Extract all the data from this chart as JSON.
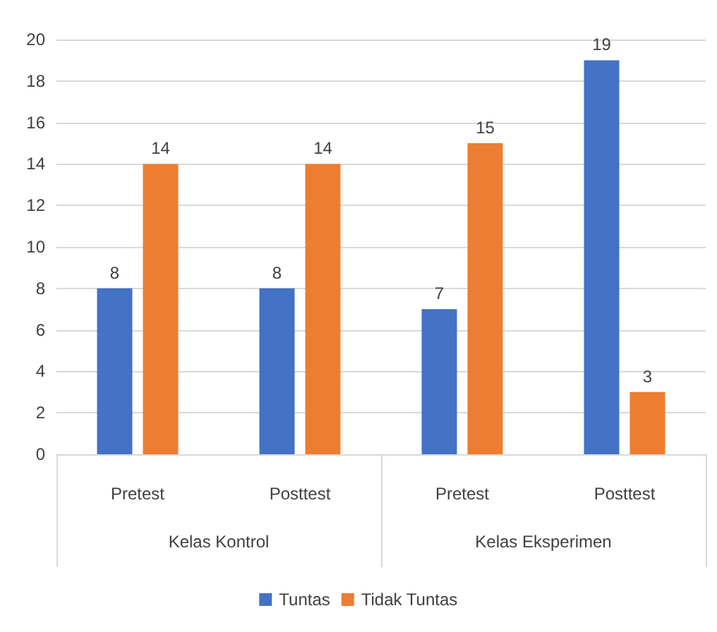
{
  "chart_data": {
    "type": "bar",
    "categories": [
      "Pretest",
      "Posttest",
      "Pretest",
      "Posttest"
    ],
    "annotations": [
      "Kelas Kontrol",
      "Kelas Eksperimen"
    ],
    "series": [
      {
        "name": "Tuntas",
        "color": "#4472c4",
        "values": [
          8,
          8,
          7,
          19
        ]
      },
      {
        "name": "Tidak Tuntas",
        "color": "#ed7d31",
        "values": [
          14,
          14,
          15,
          3
        ]
      }
    ],
    "ylim": [
      0,
      20
    ],
    "yticks": [
      0,
      2,
      4,
      6,
      8,
      10,
      12,
      14,
      16,
      18,
      20
    ],
    "grid": "y",
    "data_labels": true,
    "legend": "bottom"
  }
}
